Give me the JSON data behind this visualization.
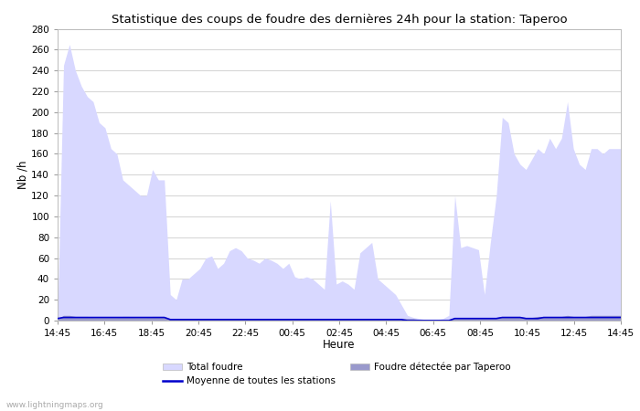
{
  "title": "Statistique des coups de foudre des dernières 24h pour la station: Taperoo",
  "xlabel": "Heure",
  "ylabel": "Nb /h",
  "ylim": [
    0,
    280
  ],
  "yticks": [
    0,
    20,
    40,
    60,
    80,
    100,
    120,
    140,
    160,
    180,
    200,
    220,
    240,
    260,
    280
  ],
  "xtick_labels": [
    "14:45",
    "16:45",
    "18:45",
    "20:45",
    "22:45",
    "00:45",
    "02:45",
    "04:45",
    "06:45",
    "08:45",
    "10:45",
    "12:45",
    "14:45"
  ],
  "background_color": "#ffffff",
  "grid_color": "#cccccc",
  "total_foudre_color": "#d8d8ff",
  "detected_color": "#9999cc",
  "mean_line_color": "#0000cc",
  "watermark": "www.lightningmaps.org",
  "total_foudre_label": "Total foudre",
  "mean_label": "Moyenne de toutes les stations",
  "detected_label": "Foudre détectée par Taperoo",
  "total_values": [
    5,
    245,
    265,
    240,
    225,
    215,
    210,
    190,
    185,
    165,
    160,
    135,
    130,
    125,
    120,
    120,
    145,
    135,
    135,
    25,
    20,
    40,
    40,
    45,
    50,
    60,
    62,
    50,
    55,
    67,
    70,
    67,
    60,
    58,
    55,
    60,
    58,
    55,
    50,
    55,
    42,
    40,
    42,
    40,
    35,
    30,
    115,
    35,
    38,
    35,
    30,
    65,
    70,
    75,
    40,
    35,
    30,
    25,
    15,
    5,
    3,
    2,
    1,
    1,
    1,
    2,
    5,
    120,
    70,
    72,
    70,
    68,
    25,
    75,
    120,
    195,
    190,
    160,
    150,
    145,
    155,
    165,
    160,
    175,
    165,
    175,
    210,
    165,
    150,
    145,
    165,
    165,
    160,
    165,
    165,
    165
  ],
  "detected_values": [
    2,
    5,
    5,
    4,
    4,
    4,
    3,
    3,
    3,
    3,
    3,
    4,
    4,
    3,
    3,
    3,
    4,
    4,
    4,
    2,
    2,
    2,
    2,
    2,
    2,
    2,
    2,
    2,
    2,
    2,
    2,
    2,
    2,
    2,
    2,
    2,
    2,
    2,
    2,
    2,
    2,
    2,
    2,
    2,
    2,
    2,
    2,
    2,
    2,
    2,
    2,
    2,
    2,
    2,
    2,
    2,
    2,
    2,
    2,
    2,
    2,
    1,
    1,
    1,
    1,
    1,
    1,
    3,
    3,
    3,
    3,
    3,
    3,
    3,
    3,
    4,
    4,
    4,
    4,
    3,
    3,
    4,
    4,
    4,
    4,
    4,
    5,
    4,
    4,
    4,
    5,
    5,
    5,
    5,
    5,
    5
  ],
  "mean_values": [
    2,
    3,
    3,
    3,
    3,
    3,
    3,
    3,
    3,
    3,
    3,
    3,
    3,
    3,
    3,
    3,
    3,
    3,
    3,
    1,
    1,
    1,
    1,
    1,
    1,
    1,
    1,
    1,
    1,
    1,
    1,
    1,
    1,
    1,
    1,
    1,
    1,
    1,
    1,
    1,
    1,
    1,
    1,
    1,
    1,
    1,
    1,
    1,
    1,
    1,
    1,
    1,
    1,
    1,
    1,
    1,
    1,
    1,
    1,
    0,
    0,
    0,
    0,
    0,
    0,
    0,
    0,
    2,
    2,
    2,
    2,
    2,
    2,
    2,
    2,
    3,
    3,
    3,
    3,
    2,
    2,
    2,
    3,
    3,
    3,
    3,
    3,
    3,
    3,
    3,
    3,
    3,
    3,
    3,
    3,
    3
  ]
}
